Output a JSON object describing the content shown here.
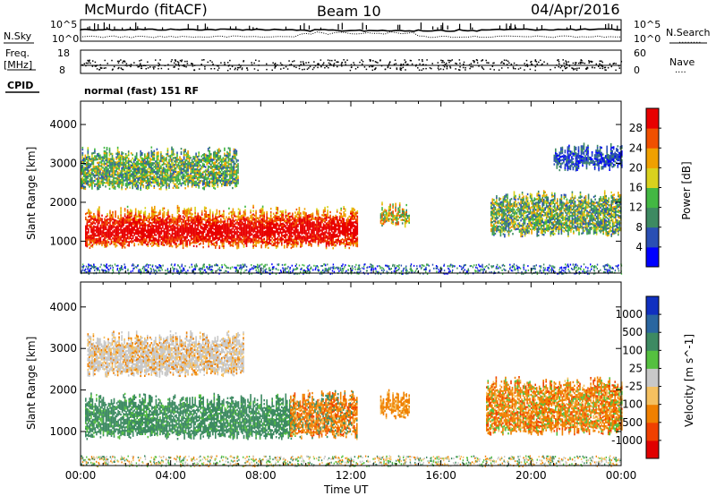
{
  "header": {
    "station": "McMurdo (fitACF)",
    "beam": "Beam 10",
    "date": "04/Apr/2016"
  },
  "noise_panel": {
    "left_label": "N.Sky",
    "right_label": "N.Search",
    "right_legend": "........",
    "left_ticks": [
      "10^5",
      "10^0"
    ],
    "right_ticks": [
      "10^5",
      "10^0"
    ]
  },
  "freq_panel": {
    "left_label_1": "Freq.",
    "left_label_2": "[MHz]",
    "right_label": "Nave",
    "right_legend": "....",
    "left_ticks": [
      "18",
      "8"
    ],
    "right_ticks": [
      "60",
      "0"
    ]
  },
  "cpid": {
    "label": "CPID",
    "mode": "normal (fast) 151 RF"
  },
  "chart_data": [
    {
      "type": "heatmap",
      "title": "",
      "xlabel": "Time UT",
      "ylabel": "Slant Range [km]",
      "x_ticks": [
        "00:00",
        "04:00",
        "08:00",
        "12:00",
        "16:00",
        "20:00",
        "00:00"
      ],
      "y_ticks": [
        1000,
        2000,
        3000,
        4000
      ],
      "xlim": [
        "00:00",
        "24:00"
      ],
      "ylim": [
        180,
        4600
      ],
      "colorbar": {
        "label": "Power [dB]",
        "ticks": [
          "4",
          "8",
          "12",
          "16",
          "20",
          "24",
          "28"
        ],
        "colors": [
          "#0000ff",
          "#2a4fb4",
          "#3e8a62",
          "#43b843",
          "#d9d11e",
          "#f0a000",
          "#f05000",
          "#e80000"
        ]
      },
      "echo_regions": [
        {
          "t0": 0.2,
          "t1": 12.3,
          "r0": 800,
          "r1": 1900,
          "value": "27 dB"
        },
        {
          "t0": 0.0,
          "t1": 7.0,
          "r0": 2300,
          "r1": 3400,
          "value": "16 dB"
        },
        {
          "t0": 13.3,
          "t1": 14.6,
          "r0": 1350,
          "r1": 2000,
          "value": "20 dB"
        },
        {
          "t0": 18.2,
          "t1": 24.0,
          "r0": 1100,
          "r1": 2300,
          "value": "14 dB"
        },
        {
          "t0": 21.0,
          "t1": 24.0,
          "r0": 2800,
          "r1": 3500,
          "value": "8 dB"
        }
      ]
    },
    {
      "type": "heatmap",
      "title": "",
      "xlabel": "Time UT",
      "ylabel": "Slant Range [km]",
      "x_ticks": [
        "00:00",
        "04:00",
        "08:00",
        "12:00",
        "16:00",
        "20:00",
        "00:00"
      ],
      "y_ticks": [
        1000,
        2000,
        3000,
        4000
      ],
      "xlim": [
        "00:00",
        "24:00"
      ],
      "ylim": [
        180,
        4600
      ],
      "colorbar": {
        "label": "Velocity [m s^-1]",
        "ticks": [
          "1000",
          "500",
          "100",
          "25",
          "-25",
          "-100",
          "-500",
          "-1000"
        ],
        "colors": [
          "#1030c0",
          "#2a66a0",
          "#3d8a62",
          "#55c040",
          "#c8c8c8",
          "#f5c060",
          "#f08000",
          "#f04000",
          "#e00000"
        ]
      },
      "echo_regions": [
        {
          "t0": 0.2,
          "t1": 9.5,
          "r0": 800,
          "r1": 1900,
          "value": "100 m/s"
        },
        {
          "t0": 9.3,
          "t1": 12.3,
          "r0": 800,
          "r1": 2000,
          "value": "-100 m/s"
        },
        {
          "t0": 0.3,
          "t1": 7.2,
          "r0": 2300,
          "r1": 3400,
          "value": "25 m/s"
        },
        {
          "t0": 13.3,
          "t1": 14.6,
          "r0": 1300,
          "r1": 2000,
          "value": "-100 m/s"
        },
        {
          "t0": 18.0,
          "t1": 24.0,
          "r0": 900,
          "r1": 2300,
          "value": "-100 m/s"
        }
      ]
    }
  ],
  "colors": {
    "axis": "#000000",
    "background": "#ffffff"
  }
}
